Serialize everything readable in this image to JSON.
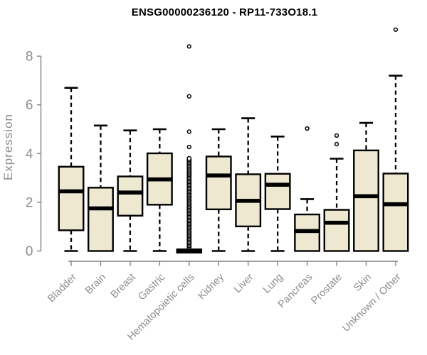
{
  "chart_data": {
    "type": "boxplot",
    "title": "ENSG00000236120 - RP11-733O18.1",
    "ylabel": "Expression",
    "xlabel": "",
    "ylim": [
      0,
      9.3
    ],
    "yticks": [
      0,
      2,
      4,
      6,
      8
    ],
    "grid": false,
    "legend": null,
    "categories": [
      "Bladder",
      "Brain",
      "Breast",
      "Gastric",
      "Hematopoietic cells",
      "Kidney",
      "Liver",
      "Lung",
      "Pancreas",
      "Prostate",
      "Skin",
      "Unknown / Other"
    ],
    "boxes": [
      {
        "category": "Bladder",
        "low": 0,
        "q1": 0.85,
        "median": 2.45,
        "q3": 3.46,
        "high": 6.7,
        "outliers": [],
        "outlier_column": null
      },
      {
        "category": "Brain",
        "low": 0,
        "q1": 0,
        "median": 1.75,
        "q3": 2.6,
        "high": 5.15,
        "outliers": [],
        "outlier_column": null
      },
      {
        "category": "Breast",
        "low": 0,
        "q1": 1.45,
        "median": 2.4,
        "q3": 3.06,
        "high": 4.95,
        "outliers": [],
        "outlier_column": null
      },
      {
        "category": "Gastric",
        "low": 0,
        "q1": 1.9,
        "median": 2.94,
        "q3": 4.01,
        "high": 5.0,
        "outliers": [],
        "outlier_column": null
      },
      {
        "category": "Hematopoietic cells",
        "low": 0,
        "q1": 0,
        "median": 0,
        "q3": 0,
        "high": 0,
        "outliers": [
          4.27,
          4.9,
          6.35,
          8.4
        ],
        "outlier_column": {
          "min": 0.16,
          "max": 3.8,
          "count": 62
        }
      },
      {
        "category": "Kidney",
        "low": 0,
        "q1": 1.71,
        "median": 3.1,
        "q3": 3.88,
        "high": 5.0,
        "outliers": [],
        "outlier_column": null
      },
      {
        "category": "Liver",
        "low": 0,
        "q1": 1.01,
        "median": 2.06,
        "q3": 3.15,
        "high": 5.45,
        "outliers": [],
        "outlier_column": null
      },
      {
        "category": "Lung",
        "low": 0,
        "q1": 1.72,
        "median": 2.72,
        "q3": 3.17,
        "high": 4.7,
        "outliers": [],
        "outlier_column": null
      },
      {
        "category": "Pancreas",
        "low": 0,
        "q1": 0,
        "median": 0.82,
        "q3": 1.5,
        "high": 2.13,
        "outliers": [
          5.03
        ],
        "outlier_column": null
      },
      {
        "category": "Prostate",
        "low": 0,
        "q1": 0,
        "median": 1.16,
        "q3": 1.69,
        "high": 3.79,
        "outliers": [
          4.39,
          4.74
        ],
        "outlier_column": null
      },
      {
        "category": "Skin",
        "low": 0,
        "q1": 0,
        "median": 2.25,
        "q3": 4.13,
        "high": 5.26,
        "outliers": [],
        "outlier_column": null
      },
      {
        "category": "Unknown / Other",
        "low": 0,
        "q1": 0,
        "median": 1.92,
        "q3": 3.18,
        "high": 7.2,
        "outliers": [
          9.09
        ],
        "outlier_column": null
      }
    ],
    "colors": {
      "box_fill": "#EDE8CF",
      "box_stroke": "#000000",
      "axis_line": "#808080",
      "axis_text": "#8C8C8C",
      "title_text": "#000000",
      "background": "#FFFFFF"
    }
  }
}
